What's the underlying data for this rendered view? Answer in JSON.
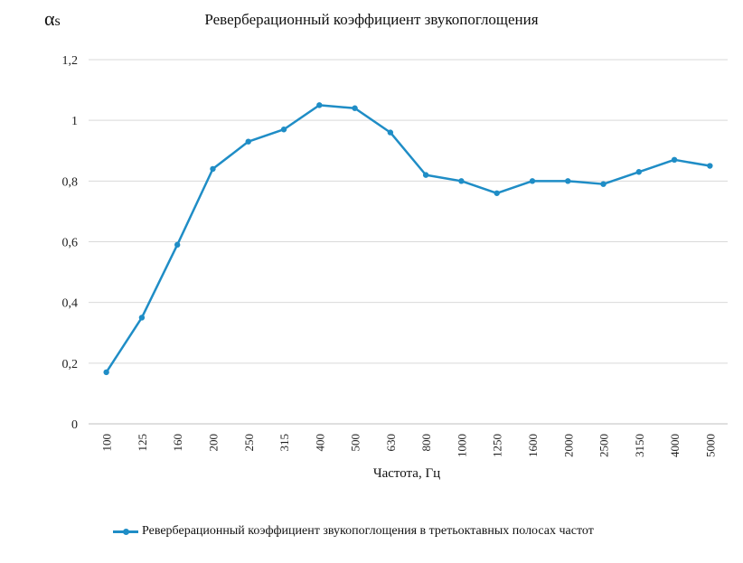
{
  "chart_data": {
    "type": "line",
    "title": "Реверберационный коэффициент звукопоглощения",
    "ylabel_symbol": "α",
    "ylabel_subscript": "s",
    "xlabel": "Частота, Гц",
    "categories": [
      "100",
      "125",
      "160",
      "200",
      "250",
      "315",
      "400",
      "500",
      "630",
      "800",
      "1000",
      "1250",
      "1600",
      "2000",
      "2500",
      "3150",
      "4000",
      "5000"
    ],
    "series": [
      {
        "name": "Реверберационный коэффициент звукопоглощения  в третьоктавных  полосах частот",
        "values": [
          0.17,
          0.35,
          0.59,
          0.84,
          0.93,
          0.97,
          1.05,
          1.04,
          0.96,
          0.82,
          0.8,
          0.76,
          0.8,
          0.8,
          0.79,
          0.83,
          0.87,
          0.85
        ],
        "color": "#1f8dc6"
      }
    ],
    "ylim": [
      0,
      1.2
    ],
    "yticks": [
      "0",
      "0,2",
      "0,4",
      "0,6",
      "0,8",
      "1",
      "1,2"
    ],
    "grid": true,
    "legend_position": "bottom"
  }
}
